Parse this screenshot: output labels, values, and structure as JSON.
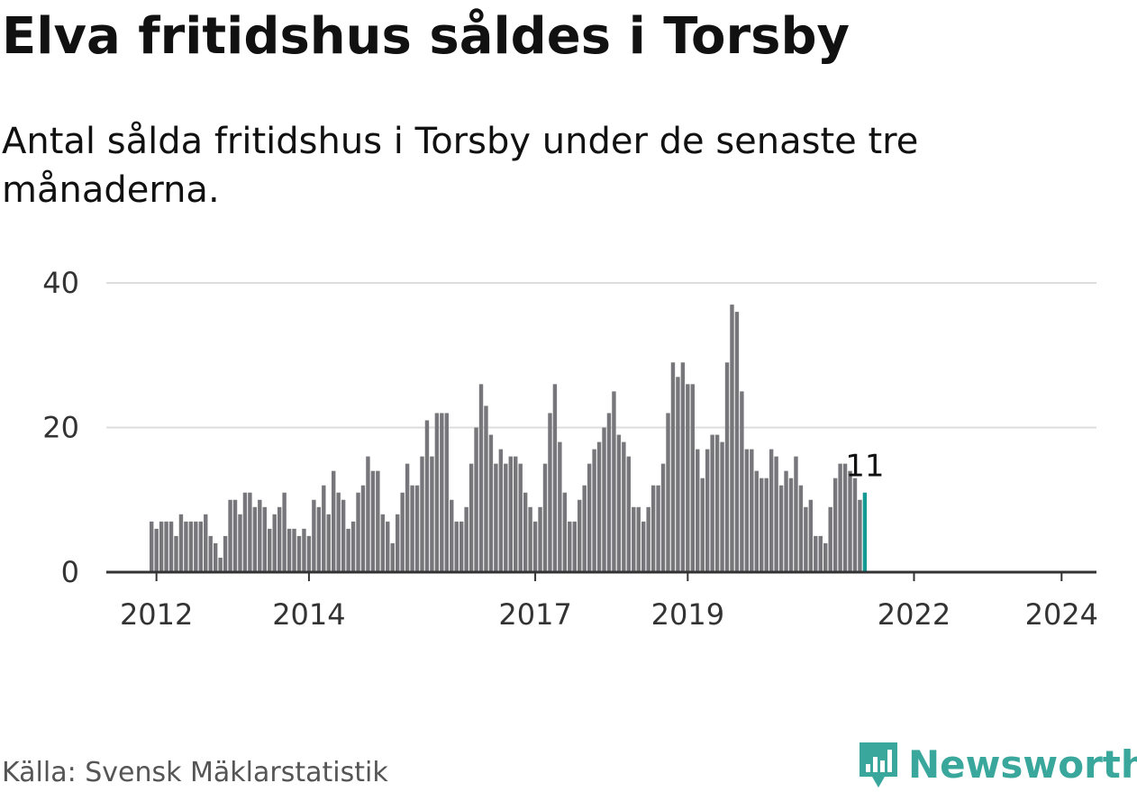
{
  "title": "Elva fritidshus såldes i Torsby",
  "subtitle": "Antal sålda fritidshus i Torsby under de senaste tre månaderna.",
  "source": "Källa: Svensk Mäklarstatistik",
  "brand": {
    "name": "Newsworthy",
    "icon": "newsworthy-logo-icon",
    "color": "#3aa79c"
  },
  "colors": {
    "bar": "#77767b",
    "highlight": "#139a93",
    "grid": "#dddddd",
    "axis": "#333333"
  },
  "chart_data": {
    "type": "bar",
    "title": "Elva fritidshus såldes i Torsby",
    "xlabel": "",
    "ylabel": "",
    "ylim": [
      0,
      40
    ],
    "yticks": [
      "0",
      "20",
      "40"
    ],
    "xticks": [
      {
        "label": "2012",
        "index": 1
      },
      {
        "label": "2014",
        "index": 32
      },
      {
        "label": "2017",
        "index": 78
      },
      {
        "label": "2019",
        "index": 109
      },
      {
        "label": "2022",
        "index": 155
      },
      {
        "label": "2024",
        "index": 185
      }
    ],
    "highlight_label": "11",
    "series": [
      {
        "name": "Antal sålda fritidshus",
        "values": [
          7,
          6,
          7,
          7,
          7,
          5,
          8,
          7,
          7,
          7,
          7,
          8,
          5,
          4,
          2,
          5,
          10,
          10,
          8,
          11,
          11,
          9,
          10,
          9,
          6,
          8,
          9,
          11,
          6,
          6,
          5,
          6,
          5,
          10,
          9,
          12,
          8,
          14,
          11,
          10,
          6,
          7,
          11,
          12,
          16,
          14,
          14,
          8,
          7,
          4,
          8,
          11,
          15,
          12,
          12,
          16,
          21,
          16,
          22,
          22,
          22,
          10,
          7,
          7,
          9,
          15,
          20,
          26,
          23,
          19,
          15,
          17,
          15,
          16,
          16,
          15,
          11,
          9,
          7,
          9,
          15,
          22,
          26,
          18,
          11,
          7,
          7,
          10,
          12,
          15,
          17,
          18,
          20,
          22,
          25,
          19,
          18,
          16,
          9,
          9,
          7,
          9,
          12,
          12,
          15,
          22,
          29,
          27,
          29,
          26,
          26,
          17,
          13,
          17,
          19,
          19,
          18,
          29,
          37,
          36,
          25,
          17,
          17,
          14,
          13,
          13,
          17,
          16,
          12,
          14,
          13,
          16,
          12,
          9,
          10,
          5,
          5,
          4,
          9,
          13,
          15,
          15,
          14,
          13,
          10,
          11
        ]
      }
    ]
  }
}
